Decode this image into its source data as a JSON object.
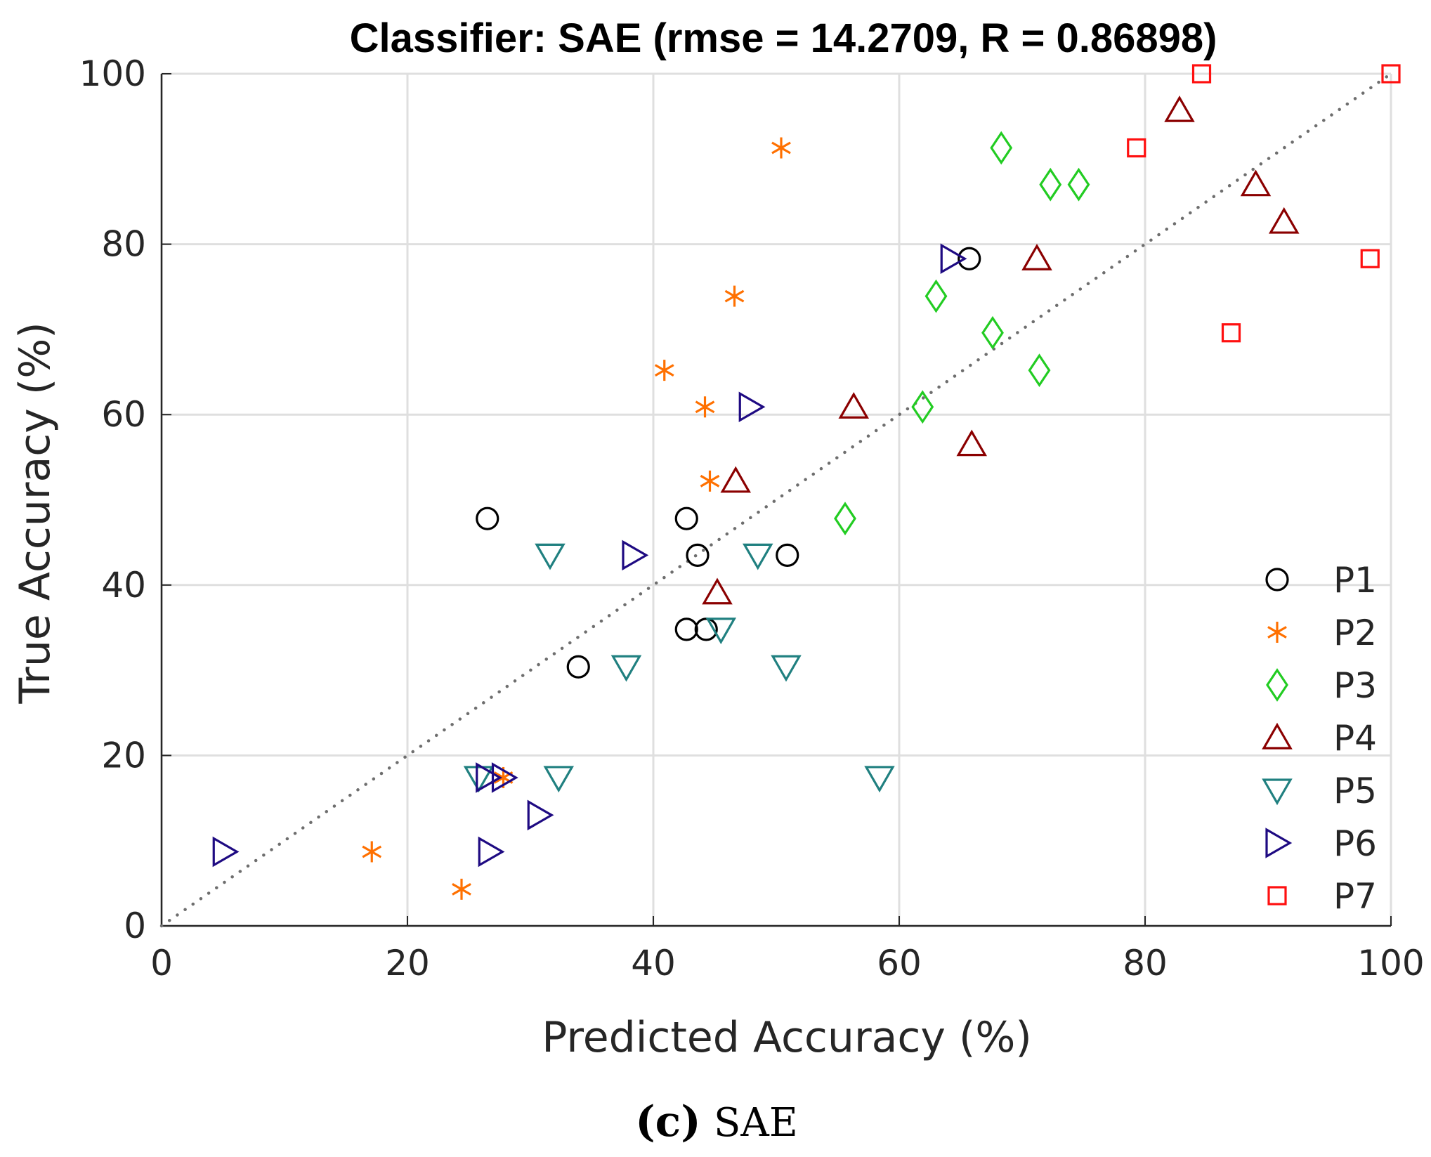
{
  "chart_data": {
    "type": "scatter",
    "title": "Classifier: SAE (rmse = 14.2709, R = 0.86898)",
    "xlabel": "Predicted Accuracy (%)",
    "ylabel": "True Accuracy (%)",
    "xlim": [
      0,
      100
    ],
    "ylim": [
      0,
      100
    ],
    "xticks": [
      "0",
      "20",
      "40",
      "60",
      "80",
      "100"
    ],
    "yticks": [
      "0",
      "20",
      "40",
      "60",
      "80",
      "100"
    ],
    "grid": true,
    "legend_position": "bottom-right",
    "reference_line": {
      "style": "dotted",
      "from": [
        0,
        0
      ],
      "to": [
        100,
        100
      ],
      "color": "#6e6e6e"
    },
    "series": [
      {
        "name": "P1",
        "marker": "circle",
        "color": "#000000",
        "points": [
          [
            26.5,
            47.8
          ],
          [
            42.7,
            47.8
          ],
          [
            43.6,
            43.5
          ],
          [
            50.9,
            43.5
          ],
          [
            42.7,
            34.8
          ],
          [
            44.3,
            34.8
          ],
          [
            33.9,
            30.4
          ],
          [
            65.7,
            78.3
          ]
        ]
      },
      {
        "name": "P2",
        "marker": "asterisk",
        "color": "#ff7000",
        "points": [
          [
            50.4,
            91.3
          ],
          [
            46.6,
            73.9
          ],
          [
            40.9,
            65.2
          ],
          [
            44.2,
            60.9
          ],
          [
            44.6,
            52.2
          ],
          [
            27.8,
            17.4
          ],
          [
            17.1,
            8.7
          ],
          [
            24.4,
            4.3
          ]
        ]
      },
      {
        "name": "P3",
        "marker": "diamond",
        "color": "#22cc22",
        "points": [
          [
            68.3,
            91.3
          ],
          [
            72.3,
            87.0
          ],
          [
            74.6,
            87.0
          ],
          [
            63.0,
            73.9
          ],
          [
            67.6,
            69.6
          ],
          [
            71.4,
            65.2
          ],
          [
            61.9,
            60.9
          ],
          [
            55.6,
            47.8
          ]
        ]
      },
      {
        "name": "P4",
        "marker": "triangle-up",
        "color": "#8b0000",
        "points": [
          [
            82.8,
            95.7
          ],
          [
            89.0,
            87.0
          ],
          [
            91.3,
            82.6
          ],
          [
            71.2,
            78.3
          ],
          [
            56.3,
            60.9
          ],
          [
            65.9,
            56.5
          ],
          [
            46.7,
            52.2
          ],
          [
            45.2,
            39.1
          ]
        ]
      },
      {
        "name": "P5",
        "marker": "triangle-down",
        "color": "#208080",
        "points": [
          [
            31.6,
            43.5
          ],
          [
            48.5,
            43.5
          ],
          [
            45.5,
            34.8
          ],
          [
            37.8,
            30.4
          ],
          [
            50.8,
            30.4
          ],
          [
            25.8,
            17.4
          ],
          [
            32.3,
            17.4
          ],
          [
            58.4,
            17.4
          ]
        ]
      },
      {
        "name": "P6",
        "marker": "triangle-right",
        "color": "#1e0a82",
        "points": [
          [
            64.3,
            78.3
          ],
          [
            47.9,
            60.9
          ],
          [
            38.4,
            43.5
          ],
          [
            26.5,
            17.4
          ],
          [
            27.8,
            17.4
          ],
          [
            30.7,
            13.0
          ],
          [
            5.1,
            8.7
          ],
          [
            26.7,
            8.7
          ]
        ]
      },
      {
        "name": "P7",
        "marker": "square",
        "color": "#ff1010",
        "points": [
          [
            84.6,
            100.0
          ],
          [
            100.0,
            100.0
          ],
          [
            79.3,
            91.3
          ],
          [
            98.3,
            78.3
          ],
          [
            87.0,
            69.6
          ]
        ]
      }
    ]
  },
  "caption": {
    "label": "(c)",
    "text": "SAE"
  }
}
